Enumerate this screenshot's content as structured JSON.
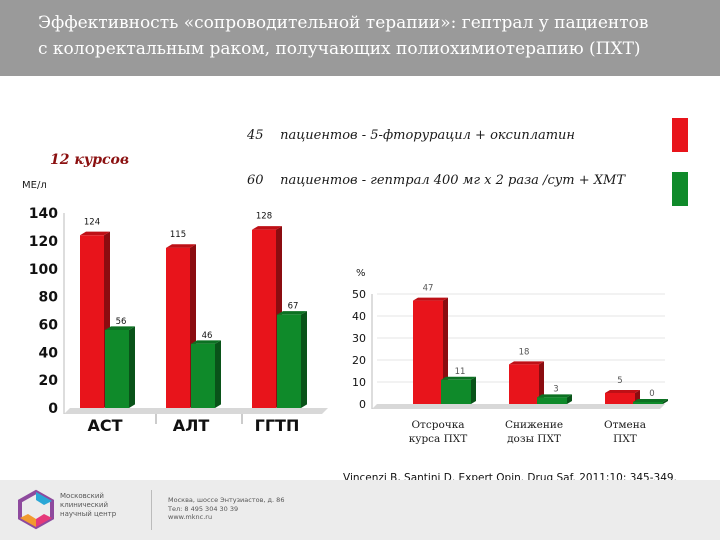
{
  "header": {
    "title_line1": "Эффективность «сопроводительной терапии»: гептрал у пациентов",
    "title_line2": "с колоректальным раком, получающих полиохимиотерапию (ПХТ)"
  },
  "legend": {
    "items": [
      {
        "count": "45",
        "text": "пациентов - 5-фторурацил + оксиплатин",
        "color": "#e8141b"
      },
      {
        "count": "60",
        "text": "пациентов -  гептрал 400 мг х 2 раза /сут + ХМТ",
        "color": "#0f8a2a"
      }
    ]
  },
  "courses_label": "12 курсов",
  "chart_data": [
    {
      "type": "bar",
      "ylabel": "МЕ/л",
      "ylim": [
        0,
        140
      ],
      "yticks": [
        "0",
        "20",
        "40",
        "60",
        "80",
        "100",
        "120",
        "140"
      ],
      "categories": [
        "АСТ",
        "АЛТ",
        "ГГТП"
      ],
      "series": [
        {
          "name": "5-фторурацил + оксиплатин",
          "values": [
            124,
            115,
            128
          ],
          "labels": [
            "124",
            "115",
            "128"
          ],
          "color": "#e8141b"
        },
        {
          "name": "гептрал + ХМТ",
          "values": [
            56,
            46,
            67
          ],
          "labels": [
            "56",
            "46",
            "67"
          ],
          "color": "#0f8a2a"
        }
      ]
    },
    {
      "type": "bar",
      "ylabel": "%",
      "ylim": [
        0,
        50
      ],
      "yticks": [
        "0",
        "10",
        "20",
        "30",
        "40",
        "50"
      ],
      "categories": [
        "Отсрочка курса ПХТ",
        "Снижение дозы ПХТ",
        "Отмена ПХТ"
      ],
      "category_lines": [
        [
          "Отсрочка",
          "курса ПХТ"
        ],
        [
          "Снижение",
          "дозы ПХТ"
        ],
        [
          "Отмена",
          "ПХТ"
        ]
      ],
      "series": [
        {
          "name": "5-фторурацил + оксиплатин",
          "values": [
            47,
            18,
            5
          ],
          "labels": [
            "47",
            "18",
            "5"
          ],
          "color": "#e8141b"
        },
        {
          "name": "гептрал + ХМТ",
          "values": [
            11,
            3,
            0
          ],
          "labels": [
            "11",
            "3",
            "0"
          ],
          "color": "#0f8a2a"
        }
      ]
    }
  ],
  "citation": "Vincenzi B, Santini  D. Expert Opin. Drug Saf. 2011;10: 345-349.",
  "footer": {
    "logo_line1": "Московский",
    "logo_line2": "клинический",
    "logo_line3": "научный центр",
    "address": "Москва, шоссе Энтузиастов, д. 86",
    "phone": "Тел: 8 495 304 30 39",
    "site": "www.mknc.ru"
  }
}
